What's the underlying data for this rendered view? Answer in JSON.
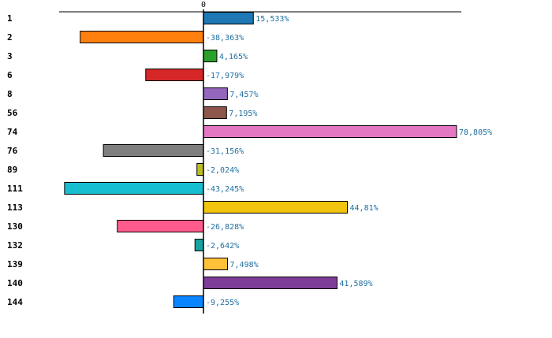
{
  "chart_data": {
    "type": "bar",
    "orientation": "horizontal",
    "title": "",
    "xlabel": "",
    "ylabel": "",
    "zero_tick_label": "0",
    "xlim": [
      -50,
      90
    ],
    "grid": false,
    "categories": [
      "1",
      "2",
      "3",
      "6",
      "8",
      "56",
      "74",
      "76",
      "89",
      "111",
      "113",
      "130",
      "132",
      "139",
      "140",
      "144"
    ],
    "values": [
      15.533,
      -38.363,
      4.165,
      -17.979,
      7.457,
      7.195,
      78.805,
      -31.156,
      -2.024,
      -43.245,
      44.81,
      -26.828,
      -2.642,
      7.498,
      41.589,
      -9.255
    ],
    "value_labels": [
      "15,533%",
      "-38,363%",
      "4,165%",
      "-17,979%",
      "7,457%",
      "7,195%",
      "78,805%",
      "-31,156%",
      "-2,024%",
      "-43,245%",
      "44,81%",
      "-26,828%",
      "-2,642%",
      "7,498%",
      "41,589%",
      "-9,255%"
    ],
    "colors": [
      "#1f77b4",
      "#ff7f0e",
      "#2ca02c",
      "#d62728",
      "#9467bd",
      "#8c564b",
      "#e377c2",
      "#7f7f7f",
      "#bcbd22",
      "#17becf",
      "#f1c40f",
      "#ff5c8d",
      "#17a2a2",
      "#ffc03a",
      "#7d3c98",
      "#0a84ff"
    ]
  }
}
